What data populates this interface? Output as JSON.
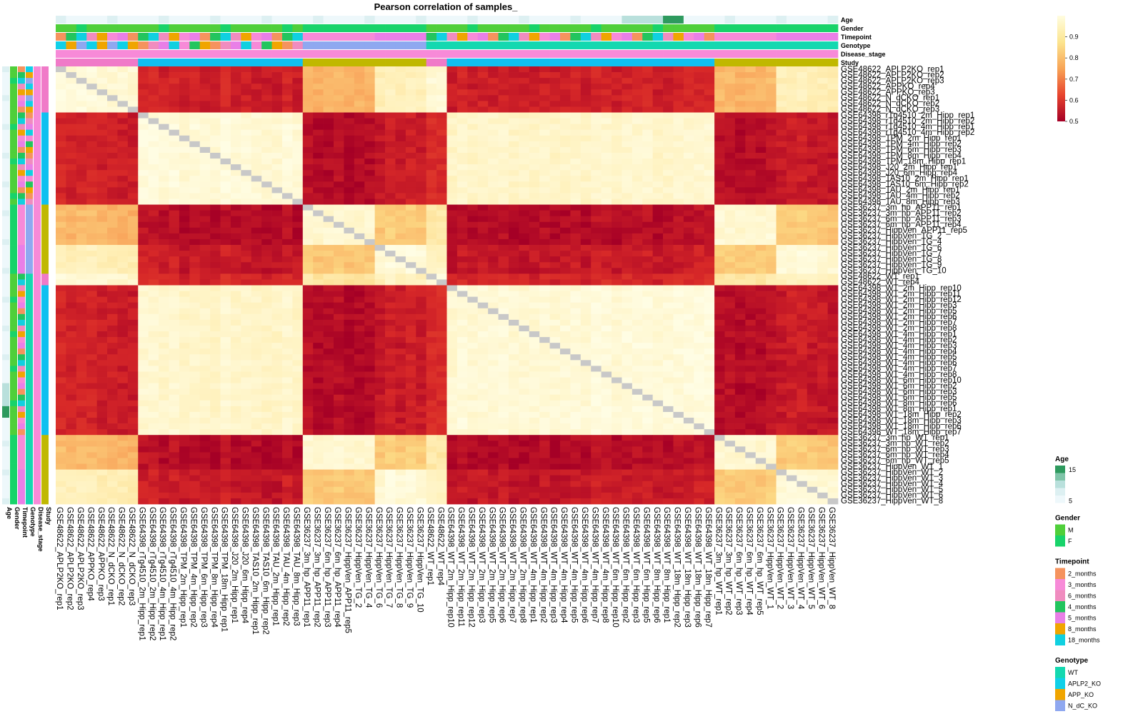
{
  "chart_data": {
    "type": "heatmap",
    "title": "Pearson correlation of samples_",
    "value_range": [
      0.5,
      1.0
    ],
    "colorbar": {
      "ticks": [
        0.9,
        0.8,
        0.7,
        0.6,
        0.5
      ],
      "colors": [
        "#fffde0",
        "#fce58f",
        "#f8a456",
        "#e8442e",
        "#a50026"
      ]
    },
    "diagonal_color": "#c8c8c8",
    "groups": [
      {
        "id": "A",
        "study": "GSE48622",
        "n": 8,
        "start": 0
      },
      {
        "id": "B",
        "study": "GSE64398",
        "n": 16,
        "start": 8
      },
      {
        "id": "C",
        "study": "GSE36237",
        "n": 7,
        "start": 24
      },
      {
        "id": "D",
        "study": "GSE36237",
        "n": 5,
        "start": 31
      },
      {
        "id": "E",
        "study": "GSE48622",
        "n": 2,
        "start": 36
      },
      {
        "id": "F",
        "study": "GSE64398",
        "n": 26,
        "start": 38
      },
      {
        "id": "G",
        "study": "GSE36237",
        "n": 6,
        "start": 64
      },
      {
        "id": "H",
        "study": "GSE36237",
        "n": 6,
        "start": 70
      }
    ],
    "group_correlations": [
      [
        0.98,
        0.55,
        0.8,
        0.93,
        0.97,
        0.55,
        0.8,
        0.93
      ],
      [
        0.55,
        0.98,
        0.52,
        0.54,
        0.56,
        0.96,
        0.52,
        0.54
      ],
      [
        0.8,
        0.52,
        0.97,
        0.83,
        0.9,
        0.52,
        0.97,
        0.83
      ],
      [
        0.93,
        0.54,
        0.83,
        0.98,
        0.94,
        0.54,
        0.83,
        0.98
      ],
      [
        0.97,
        0.56,
        0.9,
        0.94,
        0.99,
        0.56,
        0.9,
        0.94
      ],
      [
        0.55,
        0.96,
        0.52,
        0.54,
        0.56,
        0.98,
        0.52,
        0.54
      ],
      [
        0.8,
        0.52,
        0.97,
        0.83,
        0.9,
        0.52,
        0.97,
        0.83
      ],
      [
        0.93,
        0.54,
        0.83,
        0.98,
        0.94,
        0.54,
        0.83,
        0.98
      ]
    ],
    "samples": [
      "GSE48622_APLP2KO_rep1",
      "GSE48622_APLP2KO_rep2",
      "GSE48622_APLP2KO_rep3",
      "GSE48622_APPKO_rep4",
      "GSE48622_APPKO_rep3",
      "GSE48622_N_dCKO_rep1",
      "GSE48622_N_dCKO_rep2",
      "GSE48622_N_dCKO_rep3",
      "GSE64398_rTg4510_2m_Hipp_rep1",
      "GSE64398_rTg4510_2m_Hipp_rep2",
      "GSE64398_rTg4510_4m_Hipp_rep1",
      "GSE64398_rTg4510_4m_Hipp_rep2",
      "GSE64398_TPM_2m_Hipp_rep1",
      "GSE64398_TPM_4m_Hipp_rep2",
      "GSE64398_TPM_6m_Hipp_rep3",
      "GSE64398_TPM_8m_Hipp_rep4",
      "GSE64398_TPM_18m_Hipp_rep1",
      "GSE64398_J20_2m_Hipp_rep1",
      "GSE64398_J20_6m_Hipp_rep4",
      "GSE64398_TAS10_2m_Hipp_rep1",
      "GSE64398_TAS10_6m_Hipp_rep2",
      "GSE64398_TAU_2m_Hipp_rep1",
      "GSE64398_TAU_4m_Hipp_rep2",
      "GSE64398_TAU_8m_Hipp_rep3",
      "GSE36237_3m_hp_APP11_rep1",
      "GSE36237_3m_hp_APP11_rep2",
      "GSE36237_6m_hp_APP11_rep3",
      "GSE36237_6m_hp_APP11_rep4",
      "GSE36237_HippVen_APP11_rep5",
      "GSE36237_HippVen_TG_2",
      "GSE36237_HippVen_TG_4",
      "GSE36237_HippVen_TG_6",
      "GSE36237_HippVen_TG_7",
      "GSE36237_HippVen_TG_8",
      "GSE36237_HippVen_TG_9",
      "GSE36237_HippVen_TG_10",
      "GSE48622_WT_rep1",
      "GSE48622_WT_rep4",
      "GSE64398_WT_2m_Hipp_rep10",
      "GSE64398_WT_2m_Hipp_rep11",
      "GSE64398_WT_2m_Hipp_rep12",
      "GSE64398_WT_2m_Hipp_rep3",
      "GSE64398_WT_2m_Hipp_rep5",
      "GSE64398_WT_2m_Hipp_rep6",
      "GSE64398_WT_2m_Hipp_rep7",
      "GSE64398_WT_2m_Hipp_rep8",
      "GSE64398_WT_4m_Hipp_rep1",
      "GSE64398_WT_4m_Hipp_rep2",
      "GSE64398_WT_4m_Hipp_rep3",
      "GSE64398_WT_4m_Hipp_rep4",
      "GSE64398_WT_4m_Hipp_rep5",
      "GSE64398_WT_4m_Hipp_rep6",
      "GSE64398_WT_4m_Hipp_rep7",
      "GSE64398_WT_4m_Hipp_rep8",
      "GSE64398_WT_6m_Hipp_rep10",
      "GSE64398_WT_6m_Hipp_rep2",
      "GSE64398_WT_6m_Hipp_rep3",
      "GSE64398_WT_6m_Hipp_rep5",
      "GSE64398_WT_8m_Hipp_rep6",
      "GSE64398_WT_8m_Hipp_rep1",
      "GSE64398_WT_18m_Hipp_rep2",
      "GSE64398_WT_18m_Hipp_rep3",
      "GSE64398_WT_18m_Hipp_rep6",
      "GSE64398_WT_18m_Hipp_rep7",
      "GSE36237_3m_hp_WT_rep1",
      "GSE36237_3m_hp_WT_rep2",
      "GSE36237_6m_hp_WT_rep3",
      "GSE36237_6m_hp_WT_rep4",
      "GSE36237_6m_hp_WT_rep5",
      "GSE36237_HippVen_WT_1",
      "GSE36237_HippVen_WT_2",
      "GSE36237_HippVen_WT_3",
      "GSE36237_HippVen_WT_4",
      "GSE36237_HippVen_WT_5",
      "GSE36237_HippVen_WT_6",
      "GSE36237_HippVen_WT_8"
    ],
    "annotations": {
      "tracks": [
        "Age",
        "Gender",
        "Timepoint",
        "Genotype",
        "Disease_stage",
        "Study"
      ],
      "legends": [
        {
          "name": "Age",
          "type": "continuous",
          "labels": [
            "15",
            "5"
          ],
          "colors": [
            "#2e9a5e",
            "#7fc4a8",
            "#b9e0dc",
            "#ddf0f2",
            "#eef8fb"
          ]
        },
        {
          "name": "Gender",
          "type": "discrete",
          "items": [
            {
              "label": "M",
              "color": "#4fcf3a"
            },
            {
              "label": "F",
              "color": "#18d36a"
            }
          ]
        },
        {
          "name": "Timepoint",
          "type": "discrete",
          "items": [
            {
              "label": "2_months",
              "color": "#f5935e"
            },
            {
              "label": "3_months",
              "color": "#f78ad8"
            },
            {
              "label": "6_months",
              "color": "#f08cbf"
            },
            {
              "label": "4_months",
              "color": "#22c55e"
            },
            {
              "label": "5_months",
              "color": "#e97fe7"
            },
            {
              "label": "8_months",
              "color": "#f0a500"
            },
            {
              "label": "18_months",
              "color": "#10d0e0"
            }
          ]
        },
        {
          "name": "Genotype",
          "type": "discrete",
          "items": [
            {
              "label": "WT",
              "color": "#14d8b0"
            },
            {
              "label": "APLP2_KO",
              "color": "#10d0e8"
            },
            {
              "label": "APP_KO",
              "color": "#f0a500"
            },
            {
              "label": "N_dC_KO",
              "color": "#8fa8f0"
            }
          ]
        }
      ]
    }
  }
}
